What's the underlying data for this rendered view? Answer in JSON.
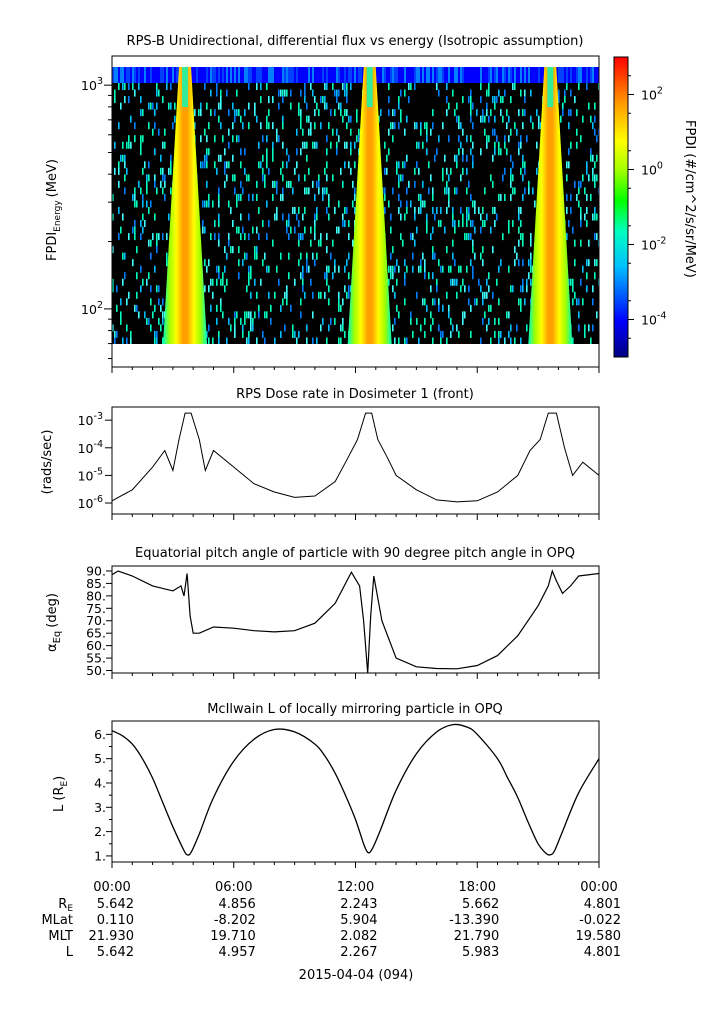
{
  "chart_data": [
    {
      "type": "heatmap",
      "title": "RPS-B  Unidirectional, differential flux vs energy (Isotropic assumption)",
      "ylabel_main": "FPDI",
      "ylabel_sub": "Energy",
      "ylabel_units": "(MeV)",
      "yscale": "log",
      "ylim": [
        55,
        1350
      ],
      "yticks": [
        {
          "value": 100,
          "base": "10",
          "exp": "2"
        },
        {
          "value": 1000,
          "base": "10",
          "exp": "3"
        }
      ],
      "colorbar": {
        "label": "FPDI (#/cm^2/s/sr/MeV)",
        "scale": "log",
        "range": [
          1e-05,
          1000.0
        ],
        "ticks": [
          {
            "value": 100,
            "base": "10",
            "exp": "2"
          },
          {
            "value": 1,
            "base": "10",
            "exp": "0"
          },
          {
            "value": 0.01,
            "base": "10",
            "exp": "-2"
          },
          {
            "value": 0.0001,
            "base": "10",
            "exp": "-4"
          }
        ]
      },
      "belt_passes_hours": [
        3.6,
        12.7,
        21.6
      ]
    },
    {
      "type": "line",
      "title": "RPS  Dose rate in Dosimeter 1 (front)",
      "ylabel": "(rads/sec)",
      "yscale": "log",
      "ylim": [
        4e-07,
        0.003
      ],
      "yticks": [
        {
          "value": 0.001,
          "base": "10",
          "exp": "-3"
        },
        {
          "value": 0.0001,
          "base": "10",
          "exp": "-4"
        },
        {
          "value": 1e-05,
          "base": "10",
          "exp": "-5"
        },
        {
          "value": 1e-06,
          "base": "10",
          "exp": "-6"
        }
      ],
      "x_hours": [
        0,
        1,
        2,
        2.6,
        3.0,
        3.3,
        3.6,
        3.9,
        4.3,
        4.6,
        5,
        6,
        7,
        8,
        9,
        10,
        11,
        11.6,
        12.1,
        12.5,
        12.8,
        13.1,
        13.6,
        14,
        15,
        16,
        17,
        18,
        19,
        20,
        20.6,
        21.1,
        21.5,
        21.9,
        22.3,
        22.7,
        23.2,
        24
      ],
      "values": [
        1.2e-06,
        3e-06,
        2e-05,
        8e-05,
        1.5e-05,
        0.0002,
        0.0018,
        0.0018,
        0.0002,
        1.5e-05,
        8e-05,
        2e-05,
        5e-06,
        2.5e-06,
        1.6e-06,
        1.8e-06,
        6e-06,
        4e-05,
        0.0002,
        0.0018,
        0.0018,
        0.0002,
        4e-05,
        1e-05,
        3e-06,
        1.3e-06,
        1.1e-06,
        1.2e-06,
        2.5e-06,
        1e-05,
        8e-05,
        0.0002,
        0.0018,
        0.0018,
        0.0001,
        1e-05,
        3e-05,
        1e-05
      ]
    },
    {
      "type": "line",
      "title": "Equatorial pitch angle of particle with 90 degree pitch angle in OPQ",
      "ylabel_main": "α",
      "ylabel_sub": "Eq",
      "ylabel_units": "(deg)",
      "ylim": [
        49,
        92
      ],
      "yticks": [
        "50.",
        "55.",
        "60.",
        "65.",
        "70.",
        "75.",
        "80.",
        "85.",
        "90."
      ],
      "ytick_values": [
        50,
        55,
        60,
        65,
        70,
        75,
        80,
        85,
        90
      ],
      "x_hours": [
        0,
        0.3,
        1,
        2,
        3,
        3.4,
        3.55,
        3.7,
        3.85,
        4.0,
        4.3,
        5,
        6,
        7,
        8,
        9,
        10,
        11,
        11.8,
        12.2,
        12.4,
        12.6,
        12.75,
        12.9,
        13.3,
        14,
        15,
        16,
        17,
        18,
        19,
        20,
        21,
        21.5,
        21.7,
        21.9,
        22.2,
        22.6,
        23,
        24
      ],
      "values": [
        88.5,
        90,
        88,
        84,
        82,
        84,
        80,
        89,
        72,
        65,
        65,
        67.5,
        67,
        66,
        65.5,
        66,
        69,
        77,
        89.5,
        84,
        70,
        49,
        72,
        88,
        70,
        55,
        51.5,
        50.8,
        50.7,
        52,
        56,
        64,
        76,
        84,
        90,
        86,
        81,
        84,
        88,
        89
      ]
    },
    {
      "type": "line",
      "title": "McIlwain L of locally mirroring particle in OPQ",
      "ylabel": "L (R",
      "ylabel_sub": "E",
      "ylabel_close": ")",
      "ylim": [
        0.75,
        6.55
      ],
      "yticks": [
        "1.",
        "2.",
        "3.",
        "4.",
        "5.",
        "6."
      ],
      "ytick_values": [
        1,
        2,
        3,
        4,
        5,
        6
      ],
      "x_hours": [
        0,
        0.5,
        1,
        1.5,
        2,
        2.5,
        3,
        3.5,
        3.7,
        3.9,
        4.3,
        5,
        6,
        7,
        8,
        9,
        10,
        10.5,
        11,
        11.5,
        12,
        12.4,
        12.6,
        12.8,
        13.2,
        14,
        15,
        16,
        16.8,
        17.5,
        18,
        19,
        19.5,
        20,
        20.5,
        21,
        21.4,
        21.6,
        21.8,
        22.2,
        23,
        24
      ],
      "values": [
        6.15,
        5.95,
        5.6,
        5.0,
        4.2,
        3.2,
        2.2,
        1.3,
        1.05,
        1.15,
        1.9,
        3.4,
        4.9,
        5.8,
        6.2,
        6.1,
        5.6,
        5.1,
        4.4,
        3.5,
        2.5,
        1.5,
        1.15,
        1.25,
        2.0,
        3.7,
        5.2,
        6.1,
        6.4,
        6.3,
        6.0,
        5.0,
        4.2,
        3.4,
        2.4,
        1.5,
        1.1,
        1.05,
        1.2,
        2.0,
        3.6,
        5.0
      ]
    }
  ],
  "time_axis": {
    "ticks": [
      "00:00",
      "06:00",
      "12:00",
      "18:00",
      "00:00"
    ],
    "date": "2015-04-04 (094)"
  },
  "ephemeris": {
    "rows": [
      {
        "label": "R",
        "label_sub": "E",
        "values": [
          "5.642",
          "4.856",
          "2.243",
          "5.662",
          "4.801"
        ]
      },
      {
        "label": "MLat",
        "label_sub": "",
        "values": [
          "0.110",
          "-8.202",
          "5.904",
          "-13.390",
          "-0.022"
        ]
      },
      {
        "label": "MLT",
        "label_sub": "",
        "values": [
          "21.930",
          "19.710",
          "2.082",
          "21.790",
          "19.580"
        ]
      },
      {
        "label": "L",
        "label_sub": "",
        "values": [
          "5.642",
          "4.957",
          "2.267",
          "5.983",
          "4.801"
        ]
      }
    ]
  }
}
